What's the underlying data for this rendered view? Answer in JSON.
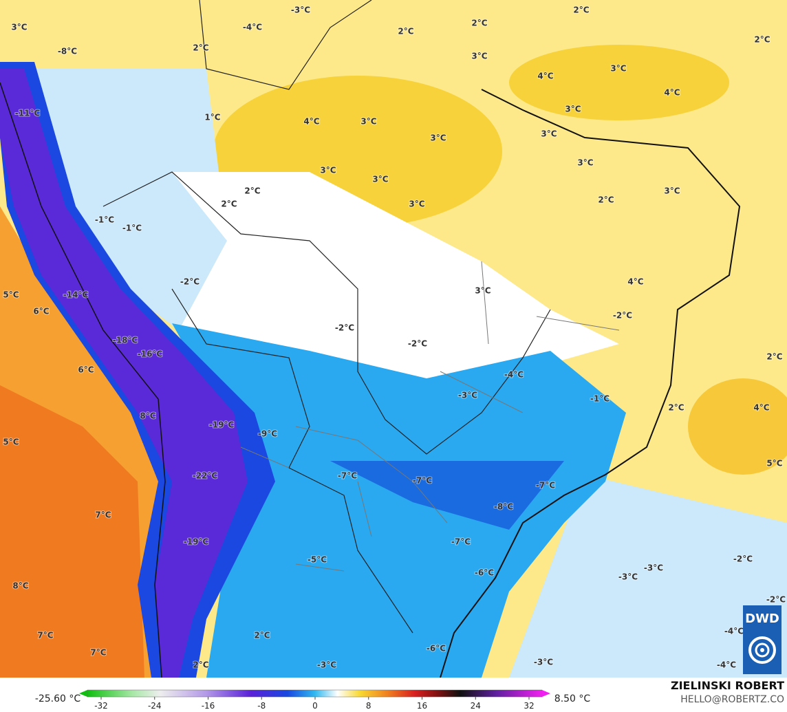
{
  "labels": [
    "3°C",
    "-3°C",
    "-4°C",
    "2°C",
    "2°C",
    "2°C",
    "2°C",
    "-8°C",
    "2°C",
    "3°C",
    "4°C",
    "3°C",
    "4°C",
    "-11°C",
    "1°C",
    "4°C",
    "3°C",
    "3°C",
    "3°C",
    "3°C",
    "3°C",
    "3°C",
    "3°C",
    "2°C",
    "2°C",
    "3°C",
    "2°C",
    "3°C",
    "-1°C",
    "-1°C",
    "-2°C",
    "4°C",
    "3°C",
    "5°C",
    "-14°C",
    "6°C",
    "-2°C",
    "-2°C",
    "-18°C",
    "-2°C",
    "-16°C",
    "2°C",
    "6°C",
    "-4°C",
    "-3°C",
    "-1°C",
    "2°C",
    "4°C",
    "8°C",
    "-19°C",
    "-9°C",
    "5°C",
    "5°C",
    "-22°C",
    "-7°C",
    "-7°C",
    "-7°C",
    "-8°C",
    "7°C",
    "-19°C",
    "-7°C",
    "-5°C",
    "-2°C",
    "-6°C",
    "-3°C",
    "-3°C",
    "8°C",
    "-2°C",
    "-4°C",
    "7°C",
    "2°C",
    "-6°C",
    "7°C",
    "2°C",
    "-3°C",
    "-3°C",
    "-4°C"
  ],
  "colorbar": {
    "min_label": "-25.60 °C",
    "max_label": "8.50 °C",
    "ticks": [
      -32,
      -24,
      -16,
      -8,
      0,
      8,
      16,
      24,
      32
    ]
  },
  "credits": {
    "author": "ZIELINSKI ROBERT",
    "contact": "HELLO@ROBERTZ.CO",
    "logo": "DWD"
  }
}
